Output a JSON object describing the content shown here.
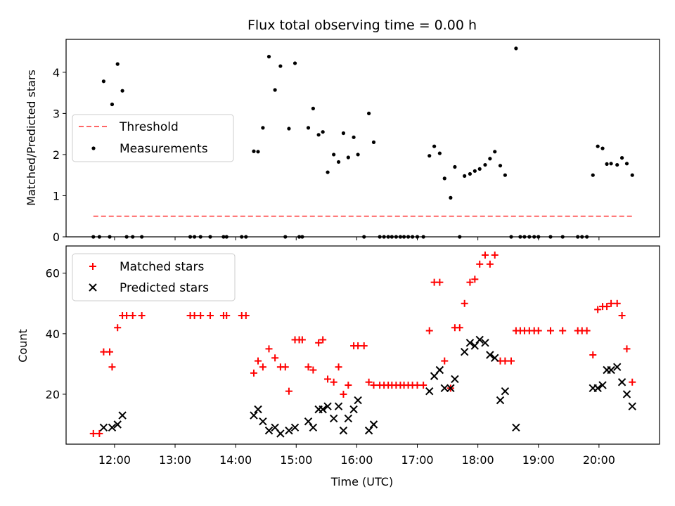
{
  "chart_data": [
    {
      "type": "scatter",
      "title": "Flux total observing time = 0.00 h",
      "xlabel": "",
      "ylabel": "Matched/Predicted stars",
      "xlim": [
        11.2,
        21.0
      ],
      "ylim": [
        0,
        4.8
      ],
      "yticks": [
        0,
        1,
        2,
        3,
        4
      ],
      "grid": false,
      "legend": {
        "placement": "center-left",
        "entries": [
          "Threshold",
          "Measurements"
        ]
      },
      "threshold": {
        "name": "Threshold",
        "y": 0.5,
        "x_range": [
          11.65,
          20.55
        ],
        "color": "#ff6666"
      },
      "series": [
        {
          "name": "Measurements",
          "color": "#000000",
          "points": [
            [
              11.65,
              0
            ],
            [
              11.75,
              0
            ],
            [
              11.82,
              3.78
            ],
            [
              11.92,
              0
            ],
            [
              11.96,
              3.22
            ],
            [
              12.05,
              4.2
            ],
            [
              12.13,
              3.55
            ],
            [
              12.2,
              0
            ],
            [
              12.3,
              0
            ],
            [
              12.45,
              0
            ],
            [
              13.25,
              0
            ],
            [
              13.32,
              0
            ],
            [
              13.42,
              0
            ],
            [
              13.58,
              0
            ],
            [
              13.8,
              0
            ],
            [
              13.85,
              0
            ],
            [
              14.1,
              0
            ],
            [
              14.17,
              0
            ],
            [
              14.3,
              2.08
            ],
            [
              14.37,
              2.07
            ],
            [
              14.45,
              2.65
            ],
            [
              14.55,
              4.38
            ],
            [
              14.65,
              3.57
            ],
            [
              14.74,
              4.15
            ],
            [
              14.82,
              0
            ],
            [
              14.88,
              2.63
            ],
            [
              14.98,
              4.22
            ],
            [
              15.05,
              0
            ],
            [
              15.1,
              0
            ],
            [
              15.2,
              2.65
            ],
            [
              15.28,
              3.12
            ],
            [
              15.37,
              2.48
            ],
            [
              15.44,
              2.55
            ],
            [
              15.52,
              1.57
            ],
            [
              15.62,
              2.0
            ],
            [
              15.7,
              1.82
            ],
            [
              15.78,
              2.52
            ],
            [
              15.86,
              1.93
            ],
            [
              15.95,
              2.42
            ],
            [
              16.02,
              2.0
            ],
            [
              16.12,
              0
            ],
            [
              16.2,
              3.0
            ],
            [
              16.28,
              2.3
            ],
            [
              16.38,
              0
            ],
            [
              16.45,
              0
            ],
            [
              16.52,
              0
            ],
            [
              16.58,
              0
            ],
            [
              16.65,
              0
            ],
            [
              16.72,
              0
            ],
            [
              16.78,
              0
            ],
            [
              16.85,
              0
            ],
            [
              16.92,
              0
            ],
            [
              17.0,
              0
            ],
            [
              17.1,
              0
            ],
            [
              17.2,
              1.97
            ],
            [
              17.28,
              2.2
            ],
            [
              17.37,
              2.03
            ],
            [
              17.45,
              1.42
            ],
            [
              17.55,
              0.95
            ],
            [
              17.62,
              1.7
            ],
            [
              17.7,
              0
            ],
            [
              17.78,
              1.48
            ],
            [
              17.87,
              1.53
            ],
            [
              17.95,
              1.6
            ],
            [
              18.03,
              1.65
            ],
            [
              18.12,
              1.75
            ],
            [
              18.2,
              1.9
            ],
            [
              18.28,
              2.07
            ],
            [
              18.37,
              1.73
            ],
            [
              18.45,
              1.5
            ],
            [
              18.55,
              0
            ],
            [
              18.63,
              4.58
            ],
            [
              18.7,
              0
            ],
            [
              18.77,
              0
            ],
            [
              18.85,
              0
            ],
            [
              18.93,
              0
            ],
            [
              19.0,
              0
            ],
            [
              19.2,
              0
            ],
            [
              19.4,
              0
            ],
            [
              19.65,
              0
            ],
            [
              19.72,
              0
            ],
            [
              19.8,
              0
            ],
            [
              19.9,
              1.5
            ],
            [
              19.98,
              2.2
            ],
            [
              20.06,
              2.15
            ],
            [
              20.13,
              1.77
            ],
            [
              20.2,
              1.78
            ],
            [
              20.3,
              1.75
            ],
            [
              20.38,
              1.92
            ],
            [
              20.46,
              1.78
            ],
            [
              20.55,
              1.5
            ]
          ]
        }
      ]
    },
    {
      "type": "scatter",
      "title": "",
      "xlabel": "Time (UTC)",
      "ylabel": "Count",
      "xlim": [
        11.2,
        21.0
      ],
      "ylim": [
        3.5,
        69
      ],
      "yticks": [
        20,
        40,
        60
      ],
      "xtick_labels": [
        "12:00",
        "13:00",
        "14:00",
        "15:00",
        "16:00",
        "17:00",
        "18:00",
        "19:00",
        "20:00"
      ],
      "xtick_values": [
        12,
        13,
        14,
        15,
        16,
        17,
        18,
        19,
        20
      ],
      "grid": false,
      "legend": {
        "placement": "top-left",
        "entries": [
          "Matched stars",
          "Predicted stars"
        ]
      },
      "series": [
        {
          "name": "Matched stars",
          "marker": "+",
          "color": "#ff0000",
          "points": [
            [
              11.65,
              7
            ],
            [
              11.75,
              7
            ],
            [
              11.82,
              34
            ],
            [
              11.92,
              34
            ],
            [
              11.96,
              29
            ],
            [
              12.05,
              42
            ],
            [
              12.13,
              46
            ],
            [
              12.2,
              46
            ],
            [
              12.3,
              46
            ],
            [
              12.45,
              46
            ],
            [
              13.25,
              46
            ],
            [
              13.32,
              46
            ],
            [
              13.42,
              46
            ],
            [
              13.58,
              46
            ],
            [
              13.8,
              46
            ],
            [
              13.85,
              46
            ],
            [
              14.1,
              46
            ],
            [
              14.17,
              46
            ],
            [
              14.3,
              27
            ],
            [
              14.37,
              31
            ],
            [
              14.45,
              29
            ],
            [
              14.55,
              35
            ],
            [
              14.65,
              32
            ],
            [
              14.74,
              29
            ],
            [
              14.82,
              29
            ],
            [
              14.88,
              21
            ],
            [
              14.98,
              38
            ],
            [
              15.05,
              38
            ],
            [
              15.1,
              38
            ],
            [
              15.2,
              29
            ],
            [
              15.28,
              28
            ],
            [
              15.37,
              37
            ],
            [
              15.44,
              38
            ],
            [
              15.52,
              25
            ],
            [
              15.62,
              24
            ],
            [
              15.7,
              29
            ],
            [
              15.78,
              20
            ],
            [
              15.86,
              23
            ],
            [
              15.95,
              36
            ],
            [
              16.02,
              36
            ],
            [
              16.12,
              36
            ],
            [
              16.2,
              24
            ],
            [
              16.28,
              23
            ],
            [
              16.38,
              23
            ],
            [
              16.45,
              23
            ],
            [
              16.52,
              23
            ],
            [
              16.58,
              23
            ],
            [
              16.65,
              23
            ],
            [
              16.72,
              23
            ],
            [
              16.78,
              23
            ],
            [
              16.85,
              23
            ],
            [
              16.92,
              23
            ],
            [
              17.0,
              23
            ],
            [
              17.1,
              23
            ],
            [
              17.2,
              41
            ],
            [
              17.28,
              57
            ],
            [
              17.37,
              57
            ],
            [
              17.45,
              31
            ],
            [
              17.55,
              22
            ],
            [
              17.62,
              42
            ],
            [
              17.7,
              42
            ],
            [
              17.78,
              50
            ],
            [
              17.87,
              57
            ],
            [
              17.95,
              58
            ],
            [
              18.03,
              63
            ],
            [
              18.12,
              66
            ],
            [
              18.2,
              63
            ],
            [
              18.28,
              66
            ],
            [
              18.37,
              31
            ],
            [
              18.45,
              31
            ],
            [
              18.55,
              31
            ],
            [
              18.63,
              41
            ],
            [
              18.7,
              41
            ],
            [
              18.77,
              41
            ],
            [
              18.85,
              41
            ],
            [
              18.93,
              41
            ],
            [
              19.0,
              41
            ],
            [
              19.2,
              41
            ],
            [
              19.4,
              41
            ],
            [
              19.65,
              41
            ],
            [
              19.72,
              41
            ],
            [
              19.8,
              41
            ],
            [
              19.9,
              33
            ],
            [
              19.98,
              48
            ],
            [
              20.06,
              49
            ],
            [
              20.13,
              49
            ],
            [
              20.2,
              50
            ],
            [
              20.3,
              50
            ],
            [
              20.38,
              46
            ],
            [
              20.46,
              35
            ],
            [
              20.55,
              24
            ]
          ]
        },
        {
          "name": "Predicted stars",
          "marker": "x",
          "color": "#000000",
          "points": [
            [
              11.82,
              9
            ],
            [
              11.96,
              9
            ],
            [
              12.05,
              10
            ],
            [
              12.13,
              13
            ],
            [
              14.3,
              13
            ],
            [
              14.37,
              15
            ],
            [
              14.45,
              11
            ],
            [
              14.55,
              8
            ],
            [
              14.65,
              9
            ],
            [
              14.74,
              7
            ],
            [
              14.88,
              8
            ],
            [
              14.98,
              9
            ],
            [
              15.2,
              11
            ],
            [
              15.28,
              9
            ],
            [
              15.37,
              15
            ],
            [
              15.44,
              15
            ],
            [
              15.52,
              16
            ],
            [
              15.62,
              12
            ],
            [
              15.7,
              16
            ],
            [
              15.78,
              8
            ],
            [
              15.86,
              12
            ],
            [
              15.95,
              15
            ],
            [
              16.02,
              18
            ],
            [
              16.2,
              8
            ],
            [
              16.28,
              10
            ],
            [
              17.2,
              21
            ],
            [
              17.28,
              26
            ],
            [
              17.37,
              28
            ],
            [
              17.45,
              22
            ],
            [
              17.55,
              22
            ],
            [
              17.62,
              25
            ],
            [
              17.78,
              34
            ],
            [
              17.87,
              37
            ],
            [
              17.95,
              36
            ],
            [
              18.03,
              38
            ],
            [
              18.12,
              37
            ],
            [
              18.2,
              33
            ],
            [
              18.28,
              32
            ],
            [
              18.37,
              18
            ],
            [
              18.45,
              21
            ],
            [
              18.63,
              9
            ],
            [
              19.9,
              22
            ],
            [
              19.98,
              22
            ],
            [
              20.06,
              23
            ],
            [
              20.13,
              28
            ],
            [
              20.2,
              28
            ],
            [
              20.3,
              29
            ],
            [
              20.38,
              24
            ],
            [
              20.46,
              20
            ],
            [
              20.55,
              16
            ]
          ]
        }
      ]
    }
  ]
}
